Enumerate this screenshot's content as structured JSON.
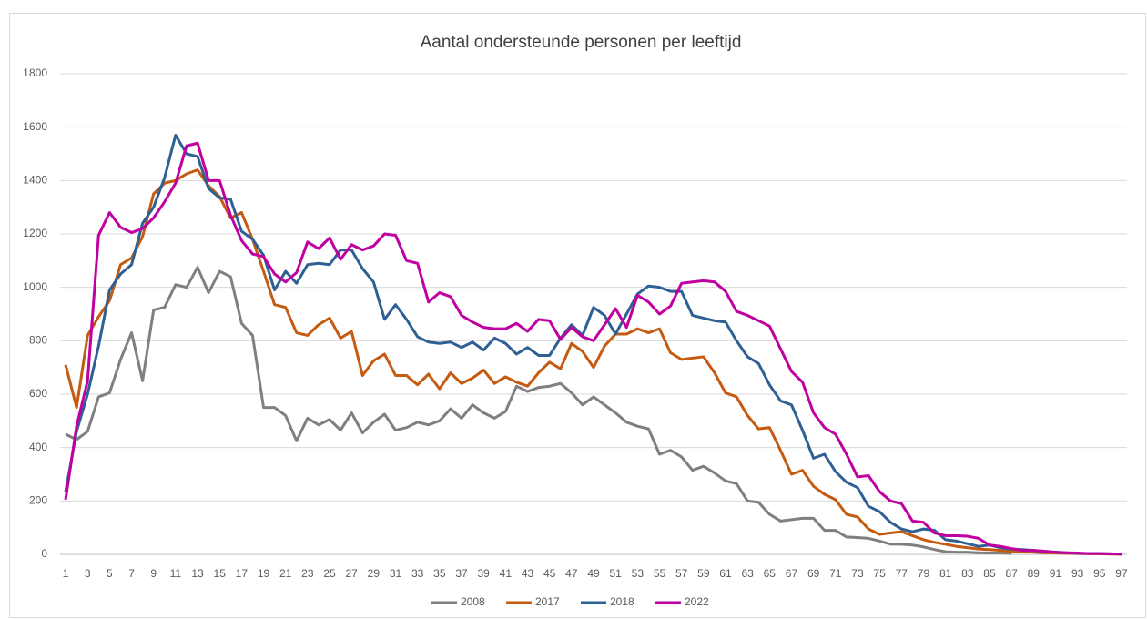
{
  "chart_data": {
    "type": "line",
    "title": "Aantal ondersteunde personen per leeftijd",
    "categories": [
      1,
      null,
      3,
      null,
      5,
      null,
      7,
      null,
      9,
      null,
      11,
      null,
      13,
      null,
      15,
      null,
      17,
      null,
      19,
      null,
      21,
      null,
      23,
      null,
      25,
      null,
      27,
      null,
      29,
      null,
      31,
      null,
      33,
      null,
      35,
      null,
      37,
      null,
      39,
      null,
      41,
      null,
      43,
      null,
      45,
      null,
      47,
      null,
      49,
      null,
      51,
      null,
      53,
      null,
      55,
      null,
      57,
      null,
      59,
      null,
      61,
      null,
      63,
      null,
      65,
      null,
      67,
      null,
      69,
      null,
      71,
      null,
      73,
      null,
      75,
      null,
      77,
      null,
      79,
      null,
      81,
      null,
      83,
      null,
      85,
      null,
      87,
      null,
      89,
      null,
      91,
      null,
      93,
      null,
      95,
      null,
      97
    ],
    "ylim": [
      0,
      1800
    ],
    "yticks": [
      0,
      200,
      400,
      600,
      800,
      1000,
      1200,
      1400,
      1600,
      1800
    ],
    "grid": true,
    "legend": "bottom",
    "series": [
      {
        "name": "2008",
        "color": "#7f7f7f",
        "values": [
          450,
          430,
          460,
          590,
          605,
          730,
          830,
          650,
          915,
          925,
          1010,
          1000,
          1075,
          980,
          1060,
          1040,
          865,
          820,
          550,
          550,
          520,
          425,
          510,
          485,
          505,
          465,
          530,
          455,
          495,
          525,
          465,
          475,
          495,
          485,
          500,
          545,
          510,
          560,
          530,
          510,
          535,
          630,
          610,
          625,
          630,
          640,
          605,
          560,
          590,
          560,
          530,
          495,
          480,
          470,
          375,
          390,
          365,
          315,
          330,
          305,
          275,
          265,
          200,
          195,
          150,
          125,
          130,
          135,
          135,
          90,
          90,
          65,
          63,
          60,
          50,
          38,
          38,
          35,
          28,
          18,
          10,
          8,
          8,
          6,
          5,
          5,
          3,
          null,
          null,
          null,
          null,
          null,
          null,
          null,
          null,
          null,
          null
        ]
      },
      {
        "name": "2017",
        "color": "#c55a11",
        "values": [
          710,
          550,
          820,
          890,
          950,
          1085,
          1110,
          1190,
          1350,
          1390,
          1400,
          1425,
          1440,
          1380,
          1340,
          1260,
          1280,
          1180,
          1060,
          935,
          925,
          830,
          820,
          860,
          885,
          810,
          835,
          670,
          725,
          750,
          670,
          670,
          635,
          675,
          620,
          680,
          640,
          660,
          690,
          640,
          665,
          645,
          630,
          680,
          720,
          695,
          790,
          760,
          700,
          780,
          825,
          825,
          845,
          830,
          845,
          755,
          730,
          735,
          740,
          680,
          605,
          590,
          520,
          470,
          475,
          390,
          300,
          315,
          255,
          225,
          205,
          150,
          140,
          95,
          75,
          80,
          85,
          70,
          55,
          45,
          38,
          30,
          25,
          20,
          18,
          15,
          12,
          10,
          8,
          6,
          5,
          4,
          3,
          2,
          2,
          1,
          1
        ]
      },
      {
        "name": "2018",
        "color": "#2e6094",
        "values": [
          235,
          460,
          600,
          780,
          990,
          1050,
          1085,
          1240,
          1300,
          1410,
          1570,
          1500,
          1490,
          1370,
          1335,
          1330,
          1210,
          1180,
          1120,
          990,
          1060,
          1015,
          1085,
          1090,
          1085,
          1140,
          1140,
          1070,
          1020,
          880,
          935,
          880,
          815,
          795,
          790,
          795,
          775,
          795,
          765,
          810,
          790,
          750,
          775,
          745,
          745,
          810,
          860,
          820,
          925,
          895,
          825,
          900,
          975,
          1005,
          1000,
          985,
          985,
          895,
          885,
          875,
          870,
          800,
          740,
          715,
          635,
          575,
          560,
          465,
          360,
          375,
          310,
          270,
          250,
          180,
          160,
          120,
          95,
          85,
          95,
          90,
          55,
          50,
          40,
          30,
          35,
          25,
          20,
          18,
          15,
          10,
          8,
          6,
          4,
          3,
          3,
          2,
          1
        ]
      },
      {
        "name": "2022",
        "color": "#c000a0",
        "values": [
          205,
          480,
          650,
          1195,
          1280,
          1225,
          1205,
          1220,
          1260,
          1320,
          1390,
          1530,
          1540,
          1400,
          1400,
          1270,
          1175,
          1125,
          1115,
          1050,
          1020,
          1055,
          1170,
          1145,
          1185,
          1105,
          1160,
          1140,
          1155,
          1200,
          1195,
          1100,
          1090,
          945,
          980,
          965,
          895,
          870,
          850,
          845,
          845,
          865,
          835,
          880,
          875,
          805,
          850,
          815,
          800,
          860,
          920,
          850,
          970,
          945,
          900,
          930,
          1015,
          1020,
          1025,
          1020,
          985,
          910,
          895,
          875,
          855,
          770,
          685,
          645,
          530,
          475,
          450,
          375,
          290,
          295,
          235,
          200,
          190,
          125,
          120,
          80,
          70,
          70,
          68,
          60,
          35,
          30,
          22,
          15,
          15,
          12,
          8,
          6,
          5,
          3,
          3,
          2,
          1
        ]
      }
    ]
  }
}
